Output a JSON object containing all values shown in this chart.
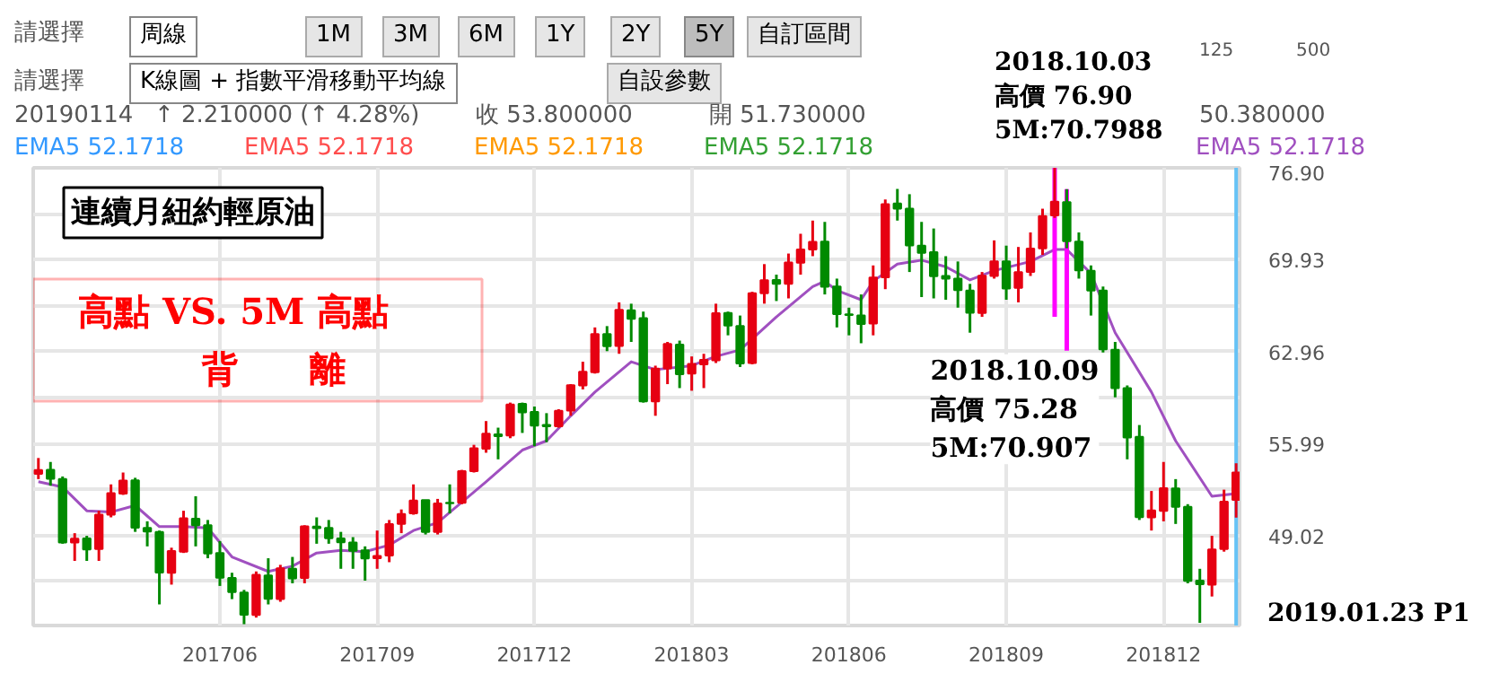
{
  "chart_data": {
    "type": "candlestick",
    "title": "連續月紐約輕原油",
    "subtitle": "高點 VS. 5M 高點",
    "x": [
      "2017-02-20",
      "2017-02-27",
      "2017-03-06",
      "2017-03-13",
      "2017-03-20",
      "2017-03-27",
      "2017-04-03",
      "2017-04-10",
      "2017-04-17",
      "2017-04-24",
      "2017-05-01",
      "2017-05-08",
      "2017-05-15",
      "2017-05-22",
      "2017-05-29",
      "2017-06-05",
      "2017-06-12",
      "2017-06-19",
      "2017-06-26",
      "2017-07-03",
      "2017-07-10",
      "2017-07-17",
      "2017-07-24",
      "2017-07-31",
      "2017-08-07",
      "2017-08-14",
      "2017-08-21",
      "2017-08-28",
      "2017-09-04",
      "2017-09-11",
      "2017-09-18",
      "2017-09-25",
      "2017-10-02",
      "2017-10-09",
      "2017-10-16",
      "2017-10-23",
      "2017-10-30",
      "2017-11-06",
      "2017-11-13",
      "2017-11-20",
      "2017-11-27",
      "2017-12-04",
      "2017-12-11",
      "2017-12-18",
      "2017-12-25",
      "2018-01-01",
      "2018-01-08",
      "2018-01-15",
      "2018-01-22",
      "2018-01-29",
      "2018-02-05",
      "2018-02-12",
      "2018-02-19",
      "2018-02-26",
      "2018-03-05",
      "2018-03-12",
      "2018-03-19",
      "2018-03-26",
      "2018-04-02",
      "2018-04-09",
      "2018-04-16",
      "2018-04-23",
      "2018-04-30",
      "2018-05-07",
      "2018-05-14",
      "2018-05-21",
      "2018-05-28",
      "2018-06-04",
      "2018-06-11",
      "2018-06-18",
      "2018-06-25",
      "2018-07-02",
      "2018-07-09",
      "2018-07-16",
      "2018-07-23",
      "2018-07-30",
      "2018-08-06",
      "2018-08-13",
      "2018-08-20",
      "2018-08-27",
      "2018-09-03",
      "2018-09-10",
      "2018-09-17",
      "2018-09-24",
      "2018-10-01",
      "2018-10-08",
      "2018-10-15",
      "2018-10-22",
      "2018-10-29",
      "2018-11-05",
      "2018-11-12",
      "2018-11-19",
      "2018-11-26",
      "2018-12-03",
      "2018-12-10",
      "2018-12-17",
      "2018-12-24",
      "2018-12-31",
      "2019-01-07",
      "2019-01-14"
    ],
    "ohlc": [
      [
        53.7,
        54.9,
        53.3,
        53.99
      ],
      [
        54.0,
        54.6,
        52.8,
        53.33
      ],
      [
        53.3,
        53.5,
        48.4,
        48.49
      ],
      [
        48.5,
        49.2,
        47.1,
        48.78
      ],
      [
        48.8,
        49.0,
        47.1,
        47.97
      ],
      [
        48.0,
        50.9,
        47.1,
        50.6
      ],
      [
        50.6,
        52.9,
        50.4,
        52.24
      ],
      [
        52.2,
        53.8,
        52.1,
        53.18
      ],
      [
        53.2,
        53.4,
        49.3,
        49.62
      ],
      [
        49.6,
        50.1,
        48.2,
        49.33
      ],
      [
        49.3,
        49.4,
        43.8,
        46.22
      ],
      [
        46.2,
        48.1,
        45.3,
        47.84
      ],
      [
        47.8,
        50.9,
        47.7,
        50.33
      ],
      [
        50.3,
        52.0,
        48.2,
        49.8
      ],
      [
        49.8,
        50.2,
        47.3,
        47.66
      ],
      [
        47.7,
        48.6,
        45.2,
        45.83
      ],
      [
        45.8,
        46.2,
        44.2,
        44.74
      ],
      [
        44.7,
        44.9,
        42.3,
        43.01
      ],
      [
        43.0,
        46.3,
        42.8,
        46.04
      ],
      [
        46.0,
        47.3,
        43.8,
        44.23
      ],
      [
        44.2,
        46.8,
        44.0,
        46.54
      ],
      [
        46.5,
        47.4,
        45.4,
        45.77
      ],
      [
        45.8,
        49.8,
        45.4,
        49.71
      ],
      [
        49.7,
        50.4,
        48.4,
        49.58
      ],
      [
        49.6,
        50.2,
        48.4,
        48.82
      ],
      [
        48.8,
        49.3,
        46.5,
        48.51
      ],
      [
        48.5,
        48.9,
        46.5,
        47.87
      ],
      [
        47.9,
        48.2,
        45.6,
        47.29
      ],
      [
        47.3,
        49.4,
        46.5,
        47.48
      ],
      [
        47.5,
        50.2,
        47.0,
        49.89
      ],
      [
        49.9,
        51.0,
        49.2,
        50.66
      ],
      [
        50.7,
        52.9,
        50.6,
        51.67
      ],
      [
        51.7,
        51.7,
        49.1,
        49.29
      ],
      [
        49.3,
        51.8,
        49.1,
        51.45
      ],
      [
        51.5,
        52.9,
        50.7,
        51.47
      ],
      [
        51.5,
        54.0,
        51.4,
        53.9
      ],
      [
        53.9,
        55.9,
        53.8,
        55.64
      ],
      [
        55.6,
        57.7,
        55.3,
        56.74
      ],
      [
        56.7,
        57.2,
        54.8,
        56.55
      ],
      [
        56.6,
        59.1,
        56.4,
        58.95
      ],
      [
        59.0,
        59.1,
        56.8,
        58.36
      ],
      [
        58.4,
        58.8,
        55.8,
        57.36
      ],
      [
        57.4,
        58.3,
        56.1,
        57.3
      ],
      [
        57.3,
        58.6,
        57.2,
        58.47
      ],
      [
        58.5,
        60.5,
        58.1,
        60.42
      ],
      [
        60.4,
        62.2,
        60.1,
        61.44
      ],
      [
        61.4,
        64.8,
        61.3,
        64.3
      ],
      [
        64.3,
        64.9,
        63.0,
        63.37
      ],
      [
        63.4,
        66.7,
        62.8,
        66.14
      ],
      [
        66.1,
        66.6,
        63.7,
        65.45
      ],
      [
        65.5,
        66.0,
        59.1,
        59.2
      ],
      [
        59.2,
        61.9,
        58.1,
        61.68
      ],
      [
        61.7,
        63.7,
        60.5,
        63.55
      ],
      [
        63.5,
        63.8,
        60.2,
        61.25
      ],
      [
        61.3,
        62.6,
        60.0,
        62.04
      ],
      [
        62.0,
        62.8,
        60.2,
        62.34
      ],
      [
        62.3,
        66.6,
        62.1,
        65.88
      ],
      [
        65.9,
        66.0,
        64.2,
        64.94
      ],
      [
        64.9,
        65.7,
        61.8,
        62.06
      ],
      [
        62.1,
        67.5,
        62.0,
        67.39
      ],
      [
        67.4,
        69.6,
        66.6,
        68.38
      ],
      [
        68.4,
        68.8,
        66.8,
        68.1
      ],
      [
        68.1,
        70.4,
        67.0,
        69.72
      ],
      [
        69.7,
        71.9,
        68.8,
        70.7
      ],
      [
        70.7,
        72.9,
        70.2,
        71.28
      ],
      [
        71.3,
        72.8,
        67.3,
        67.88
      ],
      [
        67.9,
        68.5,
        64.8,
        65.81
      ],
      [
        65.8,
        66.3,
        64.2,
        65.74
      ],
      [
        65.7,
        67.3,
        63.6,
        65.06
      ],
      [
        65.1,
        69.5,
        64.2,
        68.58
      ],
      [
        68.6,
        74.5,
        67.7,
        74.15
      ],
      [
        74.2,
        75.3,
        72.9,
        73.8
      ],
      [
        73.8,
        74.9,
        69.0,
        71.01
      ],
      [
        71.0,
        72.8,
        67.1,
        70.46
      ],
      [
        70.5,
        72.3,
        67.0,
        68.69
      ],
      [
        68.7,
        70.2,
        66.9,
        68.49
      ],
      [
        68.5,
        69.8,
        66.3,
        67.63
      ],
      [
        67.6,
        68.1,
        64.4,
        65.91
      ],
      [
        65.9,
        69.0,
        65.6,
        68.72
      ],
      [
        68.7,
        71.4,
        68.5,
        69.8
      ],
      [
        69.8,
        71.0,
        66.9,
        67.75
      ],
      [
        67.8,
        70.9,
        66.7,
        68.99
      ],
      [
        69.0,
        72.0,
        68.7,
        70.78
      ],
      [
        70.8,
        73.8,
        70.3,
        73.25
      ],
      [
        73.3,
        76.9,
        73.1,
        74.34
      ],
      [
        74.3,
        75.28,
        70.8,
        71.34
      ],
      [
        71.3,
        72.0,
        68.5,
        69.12
      ],
      [
        69.1,
        69.5,
        65.7,
        67.59
      ],
      [
        67.6,
        67.9,
        62.9,
        63.14
      ],
      [
        63.1,
        63.7,
        59.5,
        60.19
      ],
      [
        60.2,
        60.4,
        54.8,
        56.46
      ],
      [
        56.5,
        57.4,
        50.2,
        50.42
      ],
      [
        50.4,
        52.4,
        49.4,
        50.93
      ],
      [
        50.9,
        54.6,
        50.1,
        52.61
      ],
      [
        52.6,
        53.3,
        49.9,
        51.2
      ],
      [
        51.2,
        51.4,
        45.4,
        45.59
      ],
      [
        45.6,
        46.5,
        42.4,
        45.33
      ],
      [
        45.3,
        49.0,
        44.4,
        47.96
      ],
      [
        48.0,
        52.5,
        47.8,
        51.59
      ],
      [
        51.73,
        54.5,
        50.38,
        53.8
      ]
    ],
    "colors": [
      "#e60012",
      "#008a00",
      "#008a00",
      "#e60012",
      "#008a00",
      "#e60012",
      "#e60012",
      "#e60012",
      "#008a00",
      "#008a00",
      "#008a00",
      "#e60012",
      "#e60012",
      "#008a00",
      "#008a00",
      "#008a00",
      "#008a00",
      "#008a00",
      "#e60012",
      "#008a00",
      "#e60012",
      "#008a00",
      "#e60012",
      "#008a00",
      "#008a00",
      "#008a00",
      "#008a00",
      "#008a00",
      "#e60012",
      "#e60012",
      "#e60012",
      "#e60012",
      "#008a00",
      "#e60012",
      "#008a00",
      "#e60012",
      "#e60012",
      "#e60012",
      "#008a00",
      "#e60012",
      "#008a00",
      "#008a00",
      "#008a00",
      "#e60012",
      "#e60012",
      "#e60012",
      "#e60012",
      "#008a00",
      "#e60012",
      "#008a00",
      "#008a00",
      "#e60012",
      "#e60012",
      "#008a00",
      "#e60012",
      "#e60012",
      "#e60012",
      "#008a00",
      "#008a00",
      "#e60012",
      "#e60012",
      "#008a00",
      "#e60012",
      "#e60012",
      "#e60012",
      "#008a00",
      "#008a00",
      "#008a00",
      "#008a00",
      "#e60012",
      "#e60012",
      "#008a00",
      "#008a00",
      "#008a00",
      "#008a00",
      "#008a00",
      "#008a00",
      "#008a00",
      "#e60012",
      "#e60012",
      "#008a00",
      "#e60012",
      "#e60012",
      "#e60012",
      "#e60012",
      "#008a00",
      "#008a00",
      "#008a00",
      "#008a00",
      "#008a00",
      "#008a00",
      "#008a00",
      "#e60012",
      "#e60012",
      "#008a00",
      "#008a00",
      "#008a00",
      "#e60012",
      "#e60012",
      "#e60012"
    ],
    "xlim": [
      "2017-02-17",
      "2019-01-16"
    ],
    "xticks": [
      {
        "value": "2017-06-05",
        "label": "201706"
      },
      {
        "value": "2017-09-04",
        "label": "201709"
      },
      {
        "value": "2017-12-04",
        "label": "201712"
      },
      {
        "value": "2018-03-05",
        "label": "201803"
      },
      {
        "value": "2018-06-04",
        "label": "201806"
      },
      {
        "value": "2018-09-03",
        "label": "201809"
      },
      {
        "value": "2018-12-03",
        "label": "201812"
      }
    ],
    "ylim": [
      42.2,
      76.9
    ],
    "yticks": [
      {
        "value": 45.535,
        "label": null
      },
      {
        "value": 49.02,
        "label": "49.02"
      },
      {
        "value": 52.505,
        "label": null
      },
      {
        "value": 55.99,
        "label": "55.99"
      },
      {
        "value": 59.475,
        "label": null
      },
      {
        "value": 62.96,
        "label": "62.96"
      },
      {
        "value": 66.445,
        "label": null
      },
      {
        "value": 69.93,
        "label": "69.93"
      },
      {
        "value": 73.415,
        "label": null
      },
      {
        "value": 76.9,
        "label": "76.90"
      }
    ],
    "grid": true,
    "series": [
      {
        "type": "line",
        "name": "EMA5 52.1718",
        "color": "#a050c0",
        "x": [
          "2017-02-20",
          "2017-03-06",
          "2017-03-20",
          "2017-04-03",
          "2017-04-17",
          "2017-05-01",
          "2017-05-15",
          "2017-05-29",
          "2017-06-12",
          "2017-07-03",
          "2017-07-17",
          "2017-07-31",
          "2017-08-14",
          "2017-08-28",
          "2017-09-11",
          "2017-09-25",
          "2017-10-09",
          "2017-11-06",
          "2017-11-27",
          "2017-12-11",
          "2017-12-25",
          "2018-01-08",
          "2018-01-29",
          "2018-02-12",
          "2018-03-05",
          "2018-03-19",
          "2018-04-02",
          "2018-04-23",
          "2018-05-14",
          "2018-05-21",
          "2018-05-28",
          "2018-06-11",
          "2018-06-18",
          "2018-07-02",
          "2018-07-16",
          "2018-07-30",
          "2018-08-13",
          "2018-08-27",
          "2018-09-17",
          "2018-10-01",
          "2018-10-08",
          "2018-10-22",
          "2018-11-05",
          "2018-11-26",
          "2018-12-10",
          "2018-12-31",
          "2019-01-14"
        ],
        "values": [
          53.1,
          52.7,
          50.9,
          50.8,
          51.3,
          49.7,
          49.7,
          49.6,
          47.4,
          46.3,
          46.7,
          47.7,
          47.9,
          47.8,
          48.3,
          49.4,
          50.0,
          53.1,
          55.5,
          56.2,
          58.1,
          59.9,
          62.2,
          61.6,
          61.9,
          62.6,
          63.1,
          65.6,
          67.9,
          68.3,
          67.6,
          66.9,
          68.3,
          69.6,
          69.9,
          69.4,
          68.4,
          69.1,
          69.8,
          70.7,
          70.7,
          68.9,
          64.4,
          59.9,
          56.2,
          52.0,
          52.2
        ]
      }
    ],
    "ref_lines": [
      {
        "axis": "x",
        "value": "2019-01-14",
        "color": "#66c2f5"
      }
    ],
    "annotations": [
      "請選擇",
      "周線",
      "1M",
      "3M",
      "6M",
      "1Y",
      "2Y",
      "5Y",
      "自訂區間",
      "125",
      "500",
      "請選擇",
      "K線圖 + 指數平滑移動平均線",
      "自設參數",
      "20190114",
      "↑ 2.210000 (↑ 4.28%)",
      "收 53.800000",
      "開 51.730000",
      "50.380000",
      "EMA5 52.1718",
      "EMA5 52.1718",
      "EMA5 52.1718",
      "EMA5 52.1718",
      {
        "text": "2018.10.03\n高價 76.90\n5M:70.7988",
        "x": "2018-10-01",
        "y": 76.9
      },
      {
        "text": "2018.10.09\n高價 75.28\n5M:70.907",
        "x": "2018-10-08",
        "y": 75.28
      },
      "背　　離",
      "2019.01.23 P1"
    ]
  }
}
